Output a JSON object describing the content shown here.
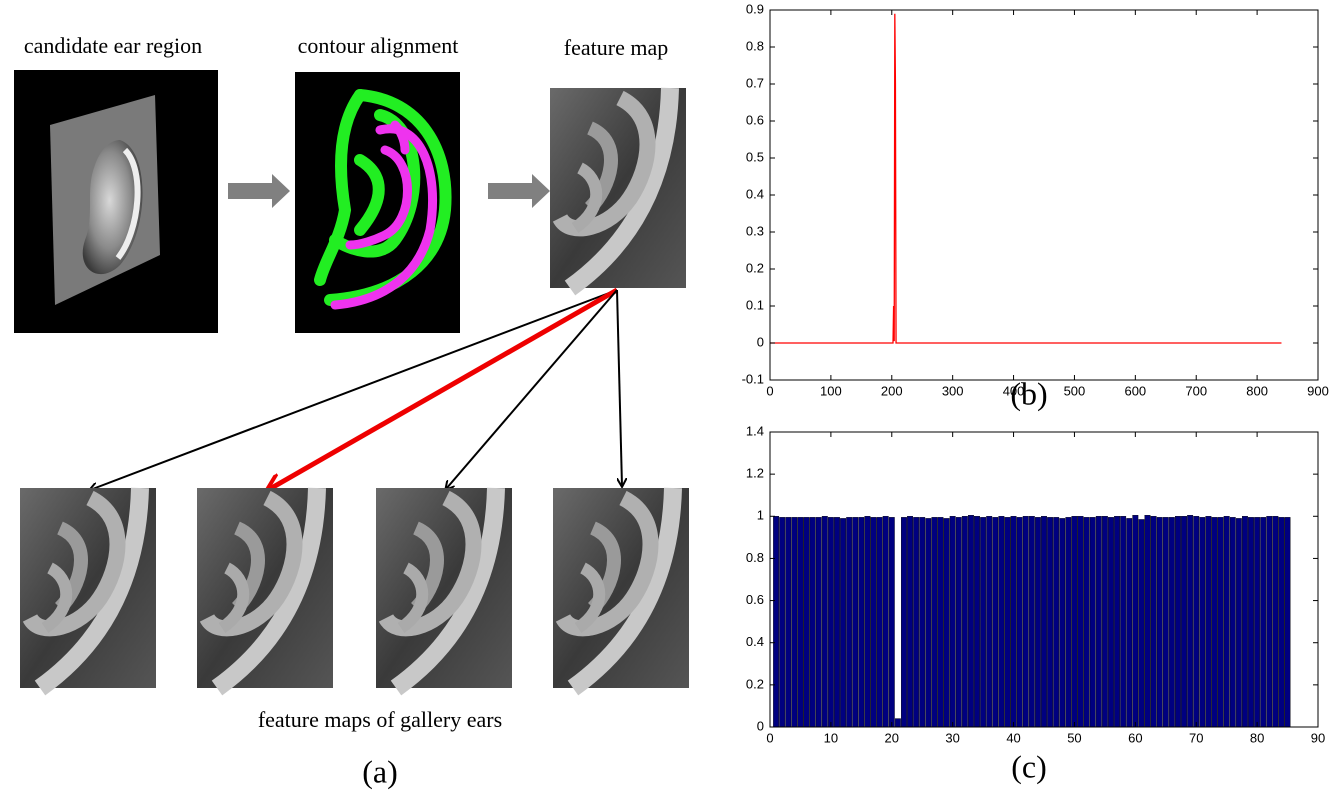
{
  "panel_a": {
    "candidate_label": "candidate ear region",
    "contour_label": "contour alignment",
    "feature_label": "feature map",
    "gallery_label": "feature maps of gallery ears",
    "caption": "(a)"
  },
  "chart_data": [
    {
      "type": "line",
      "caption": "(b)",
      "x": [
        0,
        202,
        203,
        204,
        205,
        206,
        207,
        840
      ],
      "values": [
        0,
        0,
        0.1,
        0.005,
        0.89,
        0.7,
        0,
        0
      ],
      "color": "#ff0000",
      "xlim": [
        0,
        900
      ],
      "ylim": [
        -0.1,
        0.9
      ],
      "xticks": [
        0,
        100,
        200,
        300,
        400,
        500,
        600,
        700,
        800,
        900
      ],
      "yticks": [
        -0.1,
        0,
        0.1,
        0.2,
        0.3,
        0.4,
        0.5,
        0.6,
        0.7,
        0.8,
        0.9
      ]
    },
    {
      "type": "bar",
      "caption": "(c)",
      "x": [
        1,
        2,
        3,
        4,
        5,
        6,
        7,
        8,
        9,
        10,
        11,
        12,
        13,
        14,
        15,
        16,
        17,
        18,
        19,
        20,
        21,
        22,
        23,
        24,
        25,
        26,
        27,
        28,
        29,
        30,
        31,
        32,
        33,
        34,
        35,
        36,
        37,
        38,
        39,
        40,
        41,
        42,
        43,
        44,
        45,
        46,
        47,
        48,
        49,
        50,
        51,
        52,
        53,
        54,
        55,
        56,
        57,
        58,
        59,
        60,
        61,
        62,
        63,
        64,
        65,
        66,
        67,
        68,
        69,
        70,
        71,
        72,
        73,
        74,
        75,
        76,
        77,
        78,
        79,
        80,
        81,
        82,
        83,
        84,
        85
      ],
      "values": [
        1,
        0.995,
        0.995,
        0.995,
        0.995,
        0.995,
        0.995,
        0.995,
        1,
        0.995,
        0.995,
        0.99,
        0.995,
        0.995,
        0.995,
        1,
        0.995,
        0.995,
        1,
        0.995,
        0.04,
        0.995,
        1,
        0.995,
        0.995,
        0.99,
        0.995,
        0.995,
        0.99,
        1,
        0.995,
        1,
        1.005,
        1,
        0.995,
        1,
        0.995,
        1,
        0.995,
        1,
        0.995,
        1,
        1,
        0.995,
        1,
        0.995,
        0.995,
        0.99,
        0.995,
        1,
        1,
        0.995,
        0.995,
        1,
        1,
        0.995,
        1,
        1,
        0.99,
        1.005,
        0.985,
        1.005,
        1,
        0.995,
        0.995,
        0.995,
        1,
        1,
        1.005,
        1,
        0.995,
        1,
        0.995,
        0.995,
        1,
        0.995,
        0.99,
        1,
        0.995,
        0.995,
        0.995,
        1,
        1,
        0.995,
        0.995
      ],
      "color": "#000080",
      "xlim": [
        0,
        90
      ],
      "ylim": [
        0,
        1.4
      ],
      "xticks": [
        0,
        10,
        20,
        30,
        40,
        50,
        60,
        70,
        80,
        90
      ],
      "yticks": [
        0,
        0.2,
        0.4,
        0.6,
        0.8,
        1,
        1.2,
        1.4
      ]
    }
  ]
}
